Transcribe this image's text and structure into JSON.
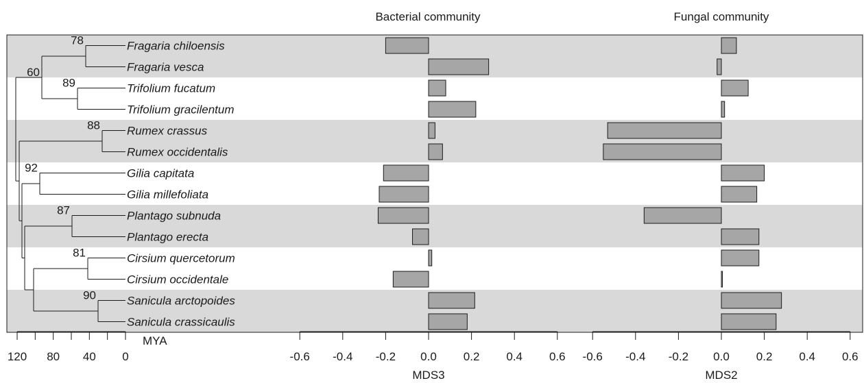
{
  "chart_data": {
    "type": "bar",
    "orientation": "horizontal",
    "species": [
      "Fragaria chiloensis",
      "Fragaria vesca",
      "Trifolium fucatum",
      "Trifolium gracilentum",
      "Rumex crassus",
      "Rumex occidentalis",
      "Gilia capitata",
      "Gilia millefoliata",
      "Plantago subnuda",
      "Plantago erecta",
      "Cirsium quercetorum",
      "Cirsium occidentale",
      "Sanicula arctopoides",
      "Sanicula crassicaulis"
    ],
    "panels": [
      {
        "title": "Bacterial community",
        "xlabel": "MDS3",
        "xlim": [
          -0.6,
          0.6
        ],
        "ticks": [
          "-0.6",
          "-0.4",
          "-0.2",
          "0.0",
          "0.2",
          "0.4",
          "0.6"
        ],
        "values": [
          -0.2,
          0.28,
          0.08,
          0.22,
          0.03,
          0.065,
          -0.21,
          -0.23,
          -0.235,
          -0.075,
          0.015,
          -0.165,
          0.215,
          0.18
        ]
      },
      {
        "title": "Fungal community",
        "xlabel": "MDS2",
        "xlim": [
          -0.6,
          0.6
        ],
        "ticks": [
          "-0.6",
          "-0.4",
          "-0.2",
          "0.0",
          "0.2",
          "0.4",
          "0.6"
        ],
        "values": [
          0.07,
          -0.02,
          0.125,
          0.015,
          -0.53,
          -0.55,
          0.2,
          0.165,
          -0.36,
          0.175,
          0.175,
          0.005,
          0.28,
          0.255
        ]
      }
    ],
    "tree": {
      "xlabel": "MYA",
      "xlim": [
        120,
        0
      ],
      "ticks": [
        "120",
        "80",
        "40",
        "0"
      ],
      "bootstrap": {
        "fragaria": "78",
        "rosids": "60",
        "trifolium": "89",
        "rumex": "88",
        "gilia": "92",
        "plantago": "87",
        "cirsium": "81",
        "sanicula": "90"
      }
    },
    "band_rows": [
      0,
      1,
      4,
      5,
      8,
      9,
      12,
      13
    ],
    "colors": {
      "bar": "#a6a6a6",
      "band": "#d9d9d9",
      "line": "#1a1a1a"
    }
  }
}
